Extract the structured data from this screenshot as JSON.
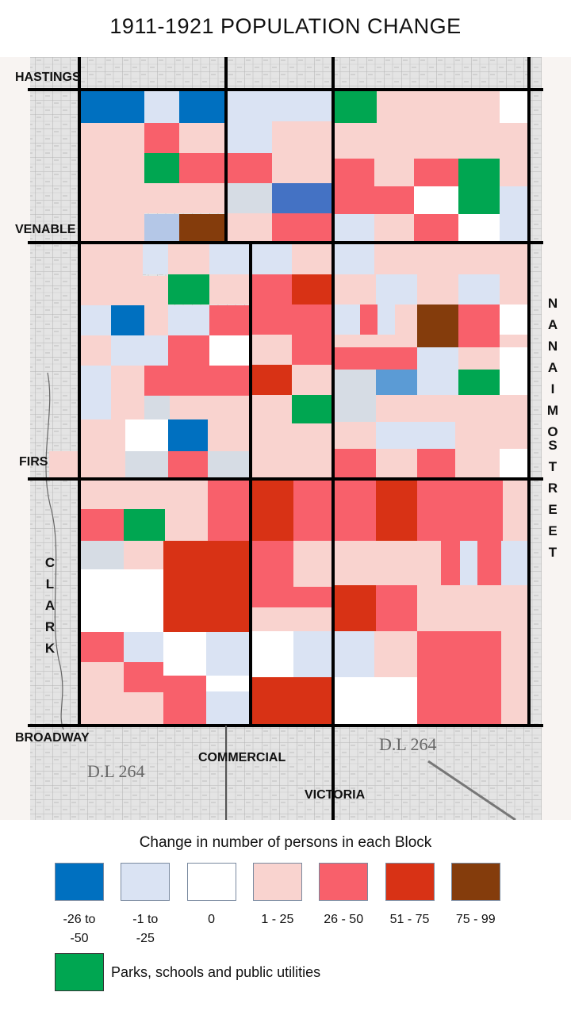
{
  "title": "1911-1921 POPULATION CHANGE",
  "streets": {
    "hastings": "HASTINGS",
    "venables": "VENABLE",
    "first": "FIRS",
    "broadway": "BROADWAY",
    "commercial": "COMMERCIAL",
    "victoria": "VICTORIA",
    "clark": "CLARK",
    "nanaimo": "NANAIMO",
    "street": "STREET",
    "dl_right": "D.L 264",
    "dl_left": "D.L 264"
  },
  "legend": {
    "title": "Change in number of persons in each Block",
    "colors": {
      "neg_large": "#0070c0",
      "neg_small": "#dae3f3",
      "zero": "#ffffff",
      "pos_1_25": "#f9d3cf",
      "pos_26_50": "#f8606b",
      "pos_51_75": "#d83215",
      "pos_75_99": "#843c0c",
      "park": "#00a651"
    },
    "items": [
      {
        "label1": "-26 to",
        "label2": "-50",
        "color": "#0070c0"
      },
      {
        "label1": "-1 to",
        "label2": "-25",
        "color": "#dae3f3"
      },
      {
        "label1": "0",
        "label2": "",
        "color": "#ffffff"
      },
      {
        "label1": "1 - 25",
        "label2": "",
        "color": "#f9d3cf"
      },
      {
        "label1": "26 - 50",
        "label2": "",
        "color": "#f8606b"
      },
      {
        "label1": "51 - 75",
        "label2": "",
        "color": "#d83215"
      },
      {
        "label1": "75 - 99",
        "label2": "",
        "color": "#843c0c"
      }
    ],
    "park_label": "Parks, schools and public utilities"
  }
}
